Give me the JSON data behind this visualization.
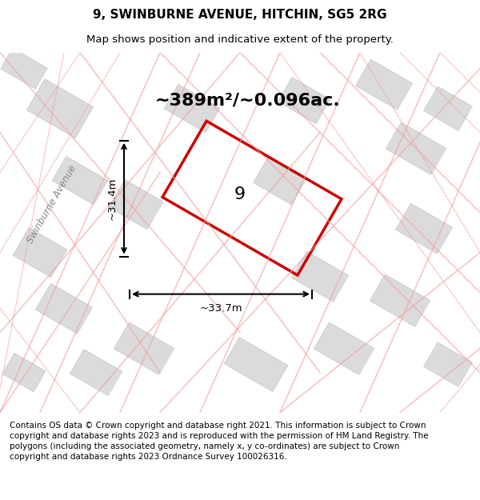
{
  "title_line1": "9, SWINBURNE AVENUE, HITCHIN, SG5 2RG",
  "title_line2": "Map shows position and indicative extent of the property.",
  "area_text": "~389m²/~0.096ac.",
  "label_9": "9",
  "dim_height": "~31.4m",
  "dim_width": "~33.7m",
  "street_label": "Swinburne Avenue",
  "copyright_text": "Contains OS data © Crown copyright and database right 2021. This information is subject to Crown copyright and database rights 2023 and is reproduced with the permission of HM Land Registry. The polygons (including the associated geometry, namely x, y co-ordinates) are subject to Crown copyright and database rights 2023 Ordnance Survey 100026316.",
  "bg_color": "#f5f5f5",
  "map_bg": "#f0f0f0",
  "property_color": "#cc0000",
  "building_fill": "#d8d8d8",
  "building_edge": "#cccccc",
  "street_line_color": "#f0a0a0",
  "dim_line_color": "#111111",
  "title_fontsize": 11,
  "subtitle_fontsize": 9.5,
  "area_fontsize": 16,
  "label_fontsize": 16,
  "copyright_fontsize": 7.5
}
